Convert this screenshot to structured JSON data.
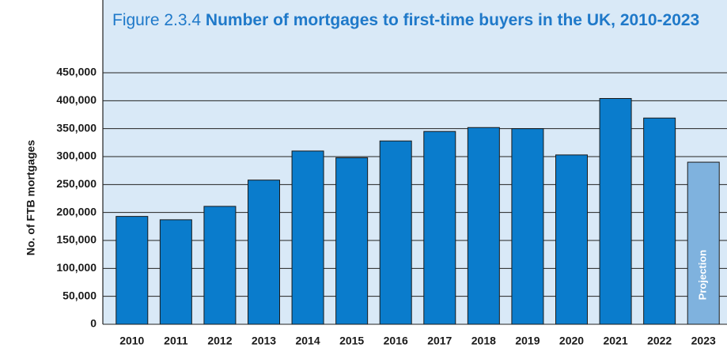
{
  "chart_data": {
    "type": "bar",
    "figure_label": "Figure 2.3.4",
    "title": "Number of mortgages to first-time buyers in the UK, 2010-2023",
    "ylabel": "No. of FTB mortgages",
    "categories": [
      "2010",
      "2011",
      "2012",
      "2013",
      "2014",
      "2015",
      "2016",
      "2017",
      "2018",
      "2019",
      "2020",
      "2021",
      "2022",
      "2023"
    ],
    "values": [
      193000,
      187000,
      211000,
      258000,
      310000,
      298000,
      328000,
      345000,
      352000,
      350000,
      303000,
      404000,
      369000,
      290000
    ],
    "colors": [
      "#0a7ccc",
      "#0a7ccc",
      "#0a7ccc",
      "#0a7ccc",
      "#0a7ccc",
      "#0a7ccc",
      "#0a7ccc",
      "#0a7ccc",
      "#0a7ccc",
      "#0a7ccc",
      "#0a7ccc",
      "#0a7ccc",
      "#0a7ccc",
      "#7fb2de"
    ],
    "annotations": [
      {
        "text": "Projection",
        "category": "2023"
      }
    ],
    "ylim": [
      0,
      450000
    ],
    "yticks": [
      {
        "value": 0,
        "label": "0"
      },
      {
        "value": 50000,
        "label": "50,000"
      },
      {
        "value": 100000,
        "label": "100,000"
      },
      {
        "value": 150000,
        "label": "150,000"
      },
      {
        "value": 200000,
        "label": "200,000"
      },
      {
        "value": 250000,
        "label": "250,000"
      },
      {
        "value": 300000,
        "label": "300,000"
      },
      {
        "value": 350000,
        "label": "350,000"
      },
      {
        "value": 400000,
        "label": "400,000"
      },
      {
        "value": 450000,
        "label": "450,000"
      }
    ],
    "grid": true
  }
}
